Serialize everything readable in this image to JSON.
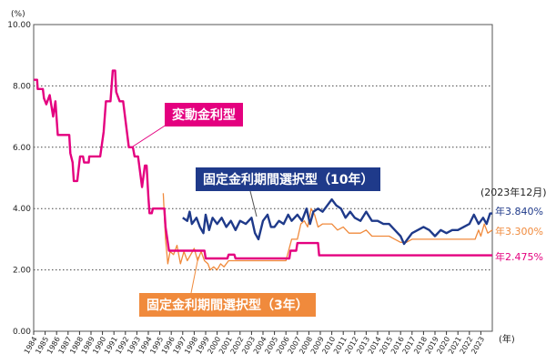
{
  "chart_data": {
    "type": "line",
    "y_unit": "(%)",
    "x_unit": "(年)",
    "ylim": [
      0,
      10
    ],
    "yticks": [
      "0.00",
      "2.00",
      "4.00",
      "6.00",
      "8.00",
      "10.00"
    ],
    "xticks": [
      "1984",
      "1985",
      "1986",
      "1987",
      "1988",
      "1989",
      "1990",
      "1991",
      "1992",
      "1993",
      "1994",
      "1995",
      "1996",
      "1997",
      "1998",
      "1999",
      "2000",
      "2001",
      "2002",
      "2003",
      "2004",
      "2005",
      "2006",
      "2007",
      "2008",
      "2009",
      "2010",
      "2011",
      "2012",
      "2013",
      "2014",
      "2015",
      "2016",
      "2017",
      "2018",
      "2019",
      "2020",
      "2021",
      "2022",
      "2023"
    ],
    "xlim": [
      1984,
      2024
    ],
    "grid": "dotted horizontal",
    "as_of": "(2023年12月)",
    "series": [
      {
        "name": "変動金利型",
        "color": "#e4007f",
        "end_label": "年2.475%",
        "points": [
          [
            1984,
            8.2
          ],
          [
            1984.3,
            8.2
          ],
          [
            1984.35,
            7.9
          ],
          [
            1984.8,
            7.9
          ],
          [
            1984.9,
            7.6
          ],
          [
            1985.1,
            7.4
          ],
          [
            1985.4,
            7.7
          ],
          [
            1985.7,
            7.0
          ],
          [
            1985.9,
            7.5
          ],
          [
            1986.1,
            6.4
          ],
          [
            1987.1,
            6.4
          ],
          [
            1987.2,
            5.8
          ],
          [
            1987.4,
            5.5
          ],
          [
            1987.5,
            4.9
          ],
          [
            1987.8,
            4.9
          ],
          [
            1988.05,
            5.7
          ],
          [
            1988.3,
            5.7
          ],
          [
            1988.4,
            5.5
          ],
          [
            1988.8,
            5.5
          ],
          [
            1988.85,
            5.7
          ],
          [
            1989.8,
            5.7
          ],
          [
            1990.1,
            6.5
          ],
          [
            1990.3,
            7.5
          ],
          [
            1990.7,
            7.5
          ],
          [
            1990.9,
            8.5
          ],
          [
            1991.1,
            8.5
          ],
          [
            1991.2,
            7.8
          ],
          [
            1991.5,
            7.5
          ],
          [
            1991.8,
            7.5
          ],
          [
            1992.0,
            6.9
          ],
          [
            1992.3,
            6.0
          ],
          [
            1992.65,
            6.0
          ],
          [
            1992.8,
            5.7
          ],
          [
            1993.1,
            5.7
          ],
          [
            1993.45,
            4.7
          ],
          [
            1993.7,
            5.4
          ],
          [
            1993.85,
            5.4
          ],
          [
            1994.0,
            4.4
          ],
          [
            1994.1,
            3.85
          ],
          [
            1994.3,
            3.85
          ],
          [
            1994.4,
            4.0
          ],
          [
            1995.4,
            4.0
          ],
          [
            1995.5,
            3.4
          ],
          [
            1995.8,
            2.625
          ],
          [
            1998.9,
            2.625
          ],
          [
            1999.0,
            2.375
          ],
          [
            2000.9,
            2.375
          ],
          [
            2001.0,
            2.5
          ],
          [
            2001.5,
            2.5
          ],
          [
            2001.6,
            2.375
          ],
          [
            2006.3,
            2.375
          ],
          [
            2006.4,
            2.625
          ],
          [
            2006.9,
            2.625
          ],
          [
            2007.0,
            2.875
          ],
          [
            2008.8,
            2.875
          ],
          [
            2008.9,
            2.475
          ],
          [
            2024,
            2.475
          ]
        ]
      },
      {
        "name": "固定金利期間選択型（10年）",
        "color": "#1f3a8a",
        "end_label": "年3.840%",
        "points": [
          [
            1997.0,
            3.7
          ],
          [
            1997.4,
            3.6
          ],
          [
            1997.6,
            3.9
          ],
          [
            1997.8,
            3.5
          ],
          [
            1998.2,
            3.7
          ],
          [
            1998.5,
            3.4
          ],
          [
            1998.8,
            3.2
          ],
          [
            1999.0,
            3.8
          ],
          [
            1999.3,
            3.3
          ],
          [
            1999.6,
            3.7
          ],
          [
            2000.0,
            3.5
          ],
          [
            2000.4,
            3.7
          ],
          [
            2000.8,
            3.4
          ],
          [
            2001.2,
            3.6
          ],
          [
            2001.6,
            3.3
          ],
          [
            2002.0,
            3.6
          ],
          [
            2002.5,
            3.5
          ],
          [
            2003.0,
            3.7
          ],
          [
            2003.3,
            3.2
          ],
          [
            2003.6,
            3.0
          ],
          [
            2004.0,
            3.6
          ],
          [
            2004.4,
            3.8
          ],
          [
            2004.7,
            3.4
          ],
          [
            2005.0,
            3.4
          ],
          [
            2005.4,
            3.6
          ],
          [
            2005.8,
            3.5
          ],
          [
            2006.2,
            3.8
          ],
          [
            2006.5,
            3.6
          ],
          [
            2007.0,
            3.8
          ],
          [
            2007.4,
            3.6
          ],
          [
            2007.8,
            4.0
          ],
          [
            2008.1,
            3.5
          ],
          [
            2008.4,
            3.9
          ],
          [
            2008.8,
            4.0
          ],
          [
            2009.2,
            3.9
          ],
          [
            2009.6,
            4.1
          ],
          [
            2010.0,
            4.3
          ],
          [
            2010.4,
            4.1
          ],
          [
            2010.8,
            4.0
          ],
          [
            2011.2,
            3.7
          ],
          [
            2011.6,
            3.9
          ],
          [
            2012.0,
            3.7
          ],
          [
            2012.5,
            3.6
          ],
          [
            2013.0,
            3.9
          ],
          [
            2013.5,
            3.6
          ],
          [
            2014.0,
            3.6
          ],
          [
            2014.5,
            3.5
          ],
          [
            2015.0,
            3.5
          ],
          [
            2015.5,
            3.3
          ],
          [
            2016.0,
            3.1
          ],
          [
            2016.3,
            2.85
          ],
          [
            2016.6,
            3.0
          ],
          [
            2017.0,
            3.2
          ],
          [
            2017.5,
            3.3
          ],
          [
            2018.0,
            3.4
          ],
          [
            2018.5,
            3.3
          ],
          [
            2019.0,
            3.1
          ],
          [
            2019.5,
            3.3
          ],
          [
            2020.0,
            3.2
          ],
          [
            2020.5,
            3.3
          ],
          [
            2021.0,
            3.3
          ],
          [
            2021.5,
            3.4
          ],
          [
            2022.0,
            3.5
          ],
          [
            2022.4,
            3.8
          ],
          [
            2022.8,
            3.5
          ],
          [
            2023.2,
            3.7
          ],
          [
            2023.5,
            3.5
          ],
          [
            2023.8,
            3.84
          ],
          [
            2024,
            3.84
          ]
        ]
      },
      {
        "name": "固定金利期間選択型（3年）",
        "color": "#f08a3c",
        "end_label": "年3.300%",
        "points": [
          [
            1995.3,
            4.5
          ],
          [
            1995.5,
            3.0
          ],
          [
            1995.7,
            2.2
          ],
          [
            1995.9,
            2.6
          ],
          [
            1996.2,
            2.5
          ],
          [
            1996.5,
            2.8
          ],
          [
            1996.8,
            2.2
          ],
          [
            1997.1,
            2.6
          ],
          [
            1997.4,
            2.3
          ],
          [
            1997.7,
            2.5
          ],
          [
            1998.0,
            2.7
          ],
          [
            1998.3,
            2.3
          ],
          [
            1998.6,
            2.6
          ],
          [
            1998.9,
            2.3
          ],
          [
            1999.2,
            2.2
          ],
          [
            1999.4,
            2.0
          ],
          [
            1999.7,
            2.1
          ],
          [
            2000.0,
            2.0
          ],
          [
            2000.3,
            2.2
          ],
          [
            2000.6,
            2.1
          ],
          [
            2001.0,
            2.3
          ],
          [
            2006.0,
            2.3
          ],
          [
            2006.5,
            3.0
          ],
          [
            2007.0,
            3.0
          ],
          [
            2007.3,
            3.5
          ],
          [
            2007.6,
            3.6
          ],
          [
            2007.9,
            3.4
          ],
          [
            2008.2,
            4.0
          ],
          [
            2008.5,
            3.8
          ],
          [
            2008.8,
            3.4
          ],
          [
            2009.2,
            3.5
          ],
          [
            2010.0,
            3.5
          ],
          [
            2010.5,
            3.3
          ],
          [
            2011.0,
            3.4
          ],
          [
            2011.5,
            3.2
          ],
          [
            2012.5,
            3.2
          ],
          [
            2013.0,
            3.3
          ],
          [
            2013.5,
            3.1
          ],
          [
            2015.0,
            3.1
          ],
          [
            2015.5,
            3.0
          ],
          [
            2016.0,
            2.9
          ],
          [
            2016.5,
            2.9
          ],
          [
            2017.0,
            3.0
          ],
          [
            2022.5,
            3.0
          ],
          [
            2022.8,
            3.3
          ],
          [
            2023.0,
            3.1
          ],
          [
            2023.3,
            3.5
          ],
          [
            2023.6,
            3.2
          ],
          [
            2024,
            3.3
          ]
        ]
      }
    ]
  }
}
